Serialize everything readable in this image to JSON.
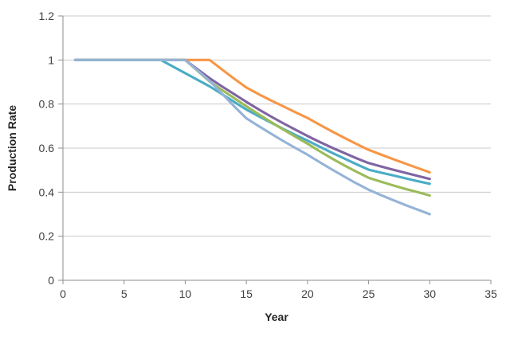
{
  "chart_data": {
    "type": "line",
    "title": "",
    "xlabel": "Year",
    "ylabel": "Production Rate",
    "xlim": [
      0,
      35
    ],
    "ylim": [
      0,
      1.2
    ],
    "x_ticks": [
      0,
      5,
      10,
      15,
      20,
      25,
      30,
      35
    ],
    "x_tick_labels": [
      "0",
      "5",
      "10",
      "15",
      "20",
      "25",
      "30",
      "35"
    ],
    "y_ticks": [
      0,
      0.2,
      0.4,
      0.6,
      0.8,
      1,
      1.2
    ],
    "y_tick_labels": [
      "0",
      "0.2",
      "0.4",
      "0.6",
      "0.8",
      "1",
      "1.2"
    ],
    "grid": true,
    "legend": false,
    "x": [
      1,
      2,
      3,
      4,
      5,
      6,
      7,
      8,
      9,
      10,
      11,
      12,
      13,
      14,
      15,
      16,
      17,
      18,
      19,
      20,
      21,
      22,
      23,
      24,
      25,
      26,
      27,
      28,
      29,
      30
    ],
    "series": [
      {
        "name": "orange-series",
        "color": "#F79646",
        "plateau_end_year": 12,
        "values": [
          1,
          1,
          1,
          1,
          1,
          1,
          1,
          1,
          1,
          1,
          1,
          1,
          0.957,
          0.915,
          0.875,
          0.845,
          0.817,
          0.79,
          0.763,
          0.737,
          0.706,
          0.676,
          0.647,
          0.619,
          0.592,
          0.571,
          0.55,
          0.53,
          0.51,
          0.49
        ]
      },
      {
        "name": "purple-series",
        "color": "#8064A2",
        "plateau_end_year": 10,
        "values": [
          1,
          1,
          1,
          1,
          1,
          1,
          1,
          1,
          1,
          1,
          0.958,
          0.917,
          0.88,
          0.845,
          0.81,
          0.776,
          0.744,
          0.713,
          0.684,
          0.655,
          0.628,
          0.602,
          0.578,
          0.554,
          0.532,
          0.517,
          0.502,
          0.488,
          0.474,
          0.46
        ]
      },
      {
        "name": "teal-series",
        "color": "#4BACC6",
        "plateau_end_year": 8,
        "values": [
          1,
          1,
          1,
          1,
          1,
          1,
          1,
          1,
          0.97,
          0.94,
          0.91,
          0.88,
          0.845,
          0.81,
          0.775,
          0.745,
          0.716,
          0.688,
          0.66,
          0.634,
          0.606,
          0.579,
          0.553,
          0.527,
          0.502,
          0.489,
          0.476,
          0.463,
          0.45,
          0.438
        ]
      },
      {
        "name": "green-series",
        "color": "#9BBB59",
        "plateau_end_year": 10,
        "values": [
          1,
          1,
          1,
          1,
          1,
          1,
          1,
          1,
          1,
          1,
          0.951,
          0.902,
          0.864,
          0.827,
          0.79,
          0.754,
          0.719,
          0.685,
          0.652,
          0.62,
          0.586,
          0.553,
          0.522,
          0.493,
          0.465,
          0.448,
          0.431,
          0.415,
          0.4,
          0.385
        ]
      },
      {
        "name": "light-blue-series",
        "color": "#95B3D7",
        "plateau_end_year": 10,
        "values": [
          1,
          1,
          1,
          1,
          1,
          1,
          1,
          1,
          1,
          1,
          0.953,
          0.905,
          0.848,
          0.79,
          0.735,
          0.7,
          0.666,
          0.633,
          0.601,
          0.57,
          0.536,
          0.503,
          0.471,
          0.44,
          0.411,
          0.387,
          0.364,
          0.342,
          0.321,
          0.3
        ]
      }
    ],
    "style": {
      "gridline_color": "#C9C9C9",
      "axis_color": "#8E8E8E",
      "tick_label_color": "#404040",
      "axis_title_color": "#262626",
      "background_color": "#FFFFFF"
    }
  }
}
